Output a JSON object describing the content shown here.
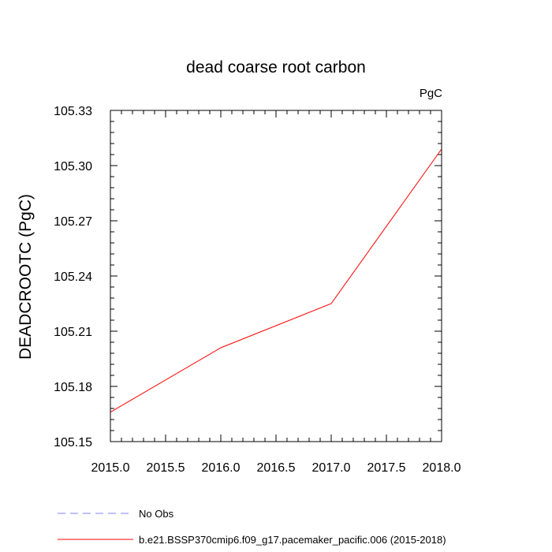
{
  "chart_data": {
    "type": "line",
    "title": "dead coarse root carbon",
    "units_label": "PgC",
    "ylabel": "DEADCROOTC  (PgC)",
    "xlabel": "",
    "xlim": [
      2015.0,
      2018.0
    ],
    "ylim": [
      105.15,
      105.33
    ],
    "x_ticks": [
      "2015.0",
      "2015.5",
      "2016.0",
      "2016.5",
      "2017.0",
      "2017.5",
      "2018.0"
    ],
    "y_ticks": [
      "105.15",
      "105.18",
      "105.21",
      "105.24",
      "105.27",
      "105.30",
      "105.33"
    ],
    "grid": false,
    "series": [
      {
        "name": "b.e21.BSSP370cmip6.f09_g17.pacemaker_pacific.006 (2015-2018)",
        "color": "#ff0000",
        "dash": "solid",
        "x": [
          2015.0,
          2016.0,
          2017.0,
          2018.0
        ],
        "y": [
          105.166,
          105.201,
          105.225,
          105.309
        ]
      }
    ],
    "legend": {
      "placement": "bottom-left",
      "entries": [
        {
          "label": "No Obs",
          "color": "#8080ff",
          "dash": "dashed"
        },
        {
          "label": "b.e21.BSSP370cmip6.f09_g17.pacemaker_pacific.006 (2015-2018)",
          "color": "#ff0000",
          "dash": "solid"
        }
      ]
    }
  }
}
